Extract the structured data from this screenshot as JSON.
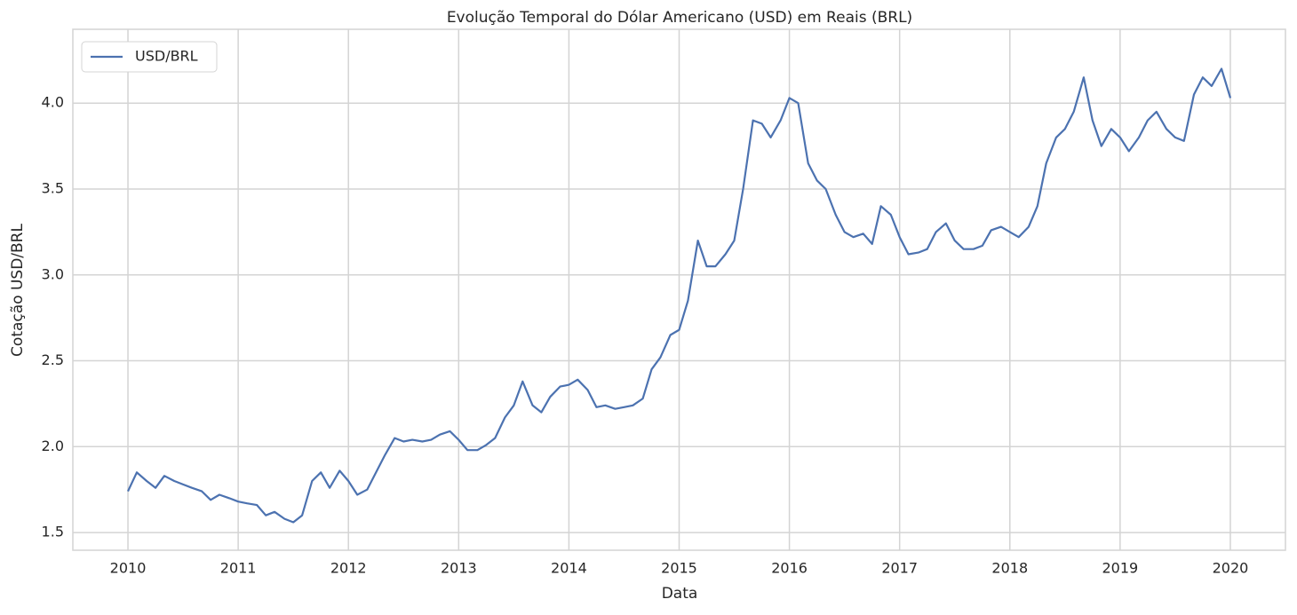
{
  "chart_data": {
    "type": "line",
    "title": "Evolução Temporal do Dólar Americano (USD) em Reais (BRL)",
    "x_label": "Data",
    "y_label": "Cotação USD/BRL",
    "x": [
      2010.0,
      2010.08,
      2010.17,
      2010.25,
      2010.33,
      2010.42,
      2010.5,
      2010.58,
      2010.67,
      2010.75,
      2010.83,
      2010.92,
      2011.0,
      2011.08,
      2011.17,
      2011.25,
      2011.33,
      2011.42,
      2011.5,
      2011.58,
      2011.67,
      2011.75,
      2011.83,
      2011.92,
      2012.0,
      2012.08,
      2012.17,
      2012.25,
      2012.33,
      2012.42,
      2012.5,
      2012.58,
      2012.67,
      2012.75,
      2012.83,
      2012.92,
      2013.0,
      2013.08,
      2013.17,
      2013.25,
      2013.33,
      2013.42,
      2013.5,
      2013.58,
      2013.67,
      2013.75,
      2013.83,
      2013.92,
      2014.0,
      2014.08,
      2014.17,
      2014.25,
      2014.33,
      2014.42,
      2014.5,
      2014.58,
      2014.67,
      2014.75,
      2014.83,
      2014.92,
      2015.0,
      2015.08,
      2015.17,
      2015.25,
      2015.33,
      2015.42,
      2015.5,
      2015.58,
      2015.67,
      2015.75,
      2015.83,
      2015.92,
      2016.0,
      2016.08,
      2016.17,
      2016.25,
      2016.33,
      2016.42,
      2016.5,
      2016.58,
      2016.67,
      2016.75,
      2016.83,
      2016.92,
      2017.0,
      2017.08,
      2017.17,
      2017.25,
      2017.33,
      2017.42,
      2017.5,
      2017.58,
      2017.67,
      2017.75,
      2017.83,
      2017.92,
      2018.0,
      2018.08,
      2018.17,
      2018.25,
      2018.33,
      2018.42,
      2018.5,
      2018.58,
      2018.67,
      2018.75,
      2018.83,
      2018.92,
      2019.0,
      2019.08,
      2019.17,
      2019.25,
      2019.33,
      2019.42,
      2019.5,
      2019.58,
      2019.67,
      2019.75,
      2019.83,
      2019.92,
      2020.0
    ],
    "series": [
      {
        "name": "USD/BRL",
        "color": "#4c72b0",
        "values": [
          1.74,
          1.85,
          1.8,
          1.76,
          1.83,
          1.8,
          1.78,
          1.76,
          1.74,
          1.69,
          1.72,
          1.7,
          1.68,
          1.67,
          1.66,
          1.6,
          1.62,
          1.58,
          1.56,
          1.6,
          1.8,
          1.85,
          1.76,
          1.86,
          1.8,
          1.72,
          1.75,
          1.85,
          1.95,
          2.05,
          2.03,
          2.04,
          2.03,
          2.04,
          2.07,
          2.09,
          2.04,
          1.98,
          1.98,
          2.01,
          2.05,
          2.17,
          2.24,
          2.38,
          2.24,
          2.2,
          2.29,
          2.35,
          2.36,
          2.39,
          2.33,
          2.23,
          2.24,
          2.22,
          2.23,
          2.24,
          2.28,
          2.45,
          2.52,
          2.65,
          2.68,
          2.85,
          3.2,
          3.05,
          3.05,
          3.12,
          3.2,
          3.5,
          3.9,
          3.88,
          3.8,
          3.9,
          4.03,
          4.0,
          3.65,
          3.55,
          3.5,
          3.35,
          3.25,
          3.22,
          3.24,
          3.18,
          3.4,
          3.35,
          3.22,
          3.12,
          3.13,
          3.15,
          3.25,
          3.3,
          3.2,
          3.15,
          3.15,
          3.17,
          3.26,
          3.28,
          3.25,
          3.22,
          3.28,
          3.4,
          3.65,
          3.8,
          3.85,
          3.95,
          4.15,
          3.9,
          3.75,
          3.85,
          3.8,
          3.72,
          3.8,
          3.9,
          3.95,
          3.85,
          3.8,
          3.78,
          4.05,
          4.15,
          4.1,
          4.2,
          4.03
        ]
      }
    ],
    "xlim": [
      2009.5,
      2020.5
    ],
    "xticks": [
      2010,
      2011,
      2012,
      2013,
      2014,
      2015,
      2016,
      2017,
      2018,
      2019,
      2020
    ],
    "ylim": [
      1.397,
      4.43
    ],
    "yticks": [
      1.5,
      {
        "value": 2,
        "label": "2.0"
      },
      2.5,
      {
        "value": 3,
        "label": "3.0"
      },
      3.5,
      {
        "value": 4,
        "label": "4.0"
      }
    ],
    "grid": true,
    "legend": "upper-left"
  }
}
